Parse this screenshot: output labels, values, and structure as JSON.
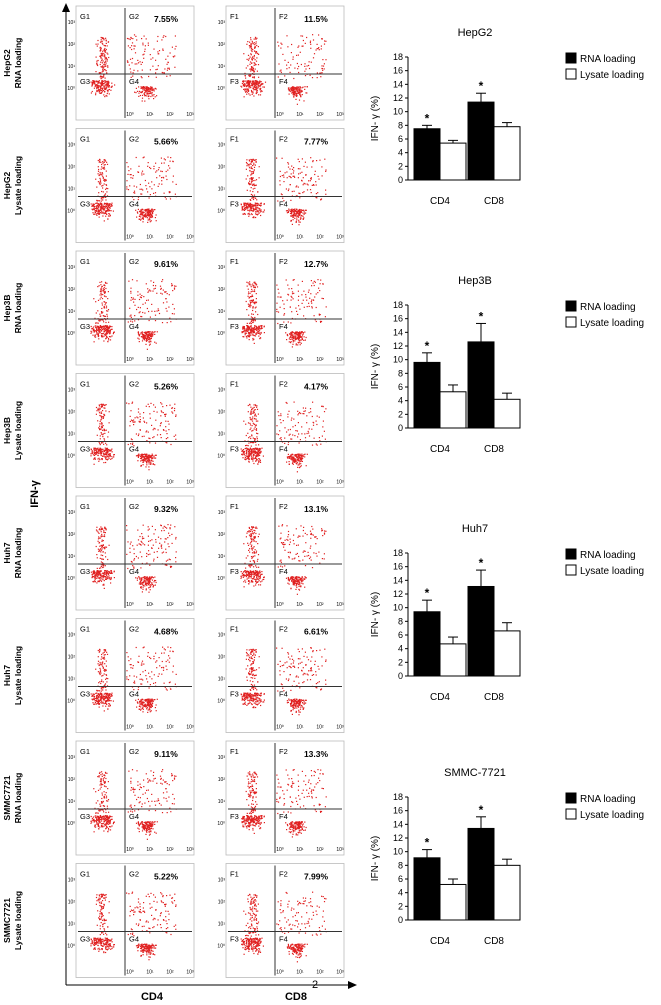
{
  "figure": {
    "y_axis_label": "IFN-γ",
    "x_axis_label_left": "CD4",
    "x_axis_label_right": "CD8",
    "page_number": "2",
    "quadrant_labels_left": [
      "G1",
      "G2",
      "G3",
      "G4"
    ],
    "quadrant_labels_right": [
      "F1",
      "F2",
      "F3",
      "F4"
    ],
    "axis_ticks": [
      "10⁰",
      "10¹",
      "10²",
      "10³"
    ],
    "dot_color": "#e02020"
  },
  "flow_rows": [
    {
      "cell_line": "HepG2",
      "loading": "RNA loading",
      "cd4_pct": "7.55%",
      "cd8_pct": "11.5%"
    },
    {
      "cell_line": "HepG2",
      "loading": "Lysate loading",
      "cd4_pct": "5.66%",
      "cd8_pct": "7.77%"
    },
    {
      "cell_line": "Hep3B",
      "loading": "RNA loading",
      "cd4_pct": "9.61%",
      "cd8_pct": "12.7%"
    },
    {
      "cell_line": "Hep3B",
      "loading": "Lysate loading",
      "cd4_pct": "5.26%",
      "cd8_pct": "4.17%"
    },
    {
      "cell_line": "Huh7",
      "loading": "RNA loading",
      "cd4_pct": "9.32%",
      "cd8_pct": "13.1%"
    },
    {
      "cell_line": "Huh7",
      "loading": "Lysate loading",
      "cd4_pct": "4.68%",
      "cd8_pct": "6.61%"
    },
    {
      "cell_line": "SMMC7721",
      "loading": "RNA loading",
      "cd4_pct": "9.11%",
      "cd8_pct": "13.3%"
    },
    {
      "cell_line": "SMMC7721",
      "loading": "Lysate loading",
      "cd4_pct": "5.22%",
      "cd8_pct": "7.99%"
    }
  ],
  "chart_data": [
    {
      "type": "bar",
      "title": "HepG2",
      "ylabel": "IFN- γ (%)",
      "xlabel": "",
      "categories": [
        "CD4",
        "CD8"
      ],
      "ylim": [
        0,
        18
      ],
      "yticks": [
        0,
        2,
        4,
        6,
        8,
        10,
        12,
        14,
        16,
        18
      ],
      "series": [
        {
          "name": "RNA loading",
          "color": "#000000",
          "values": [
            7.5,
            11.4
          ],
          "errors": [
            0.5,
            1.3
          ]
        },
        {
          "name": "Lysate loading",
          "color": "#ffffff",
          "values": [
            5.4,
            7.8
          ],
          "errors": [
            0.4,
            0.6
          ]
        }
      ],
      "significance": [
        "*",
        "*"
      ]
    },
    {
      "type": "bar",
      "title": "Hep3B",
      "ylabel": "IFN- γ (%)",
      "xlabel": "",
      "categories": [
        "CD4",
        "CD8"
      ],
      "ylim": [
        0,
        18
      ],
      "yticks": [
        0,
        2,
        4,
        6,
        8,
        10,
        12,
        14,
        16,
        18
      ],
      "series": [
        {
          "name": "RNA loading",
          "color": "#000000",
          "values": [
            9.6,
            12.6
          ],
          "errors": [
            1.4,
            2.7
          ]
        },
        {
          "name": "Lysate loading",
          "color": "#ffffff",
          "values": [
            5.3,
            4.2
          ],
          "errors": [
            1.0,
            0.9
          ]
        }
      ],
      "significance": [
        "*",
        "*"
      ]
    },
    {
      "type": "bar",
      "title": "Huh7",
      "ylabel": "IFN- γ (%)",
      "xlabel": "",
      "categories": [
        "CD4",
        "CD8"
      ],
      "ylim": [
        0,
        18
      ],
      "yticks": [
        0,
        2,
        4,
        6,
        8,
        10,
        12,
        14,
        16,
        18
      ],
      "series": [
        {
          "name": "RNA loading",
          "color": "#000000",
          "values": [
            9.4,
            13.1
          ],
          "errors": [
            1.7,
            2.4
          ]
        },
        {
          "name": "Lysate loading",
          "color": "#ffffff",
          "values": [
            4.7,
            6.6
          ],
          "errors": [
            1.0,
            1.2
          ]
        }
      ],
      "significance": [
        "*",
        "*"
      ]
    },
    {
      "type": "bar",
      "title": "SMMC-7721",
      "ylabel": "IFN- γ (%)",
      "xlabel": "",
      "categories": [
        "CD4",
        "CD8"
      ],
      "ylim": [
        0,
        18
      ],
      "yticks": [
        0,
        2,
        4,
        6,
        8,
        10,
        12,
        14,
        16,
        18
      ],
      "series": [
        {
          "name": "RNA loading",
          "color": "#000000",
          "values": [
            9.1,
            13.4
          ],
          "errors": [
            1.2,
            1.7
          ]
        },
        {
          "name": "Lysate loading",
          "color": "#ffffff",
          "values": [
            5.2,
            8.0
          ],
          "errors": [
            0.8,
            0.9
          ]
        }
      ],
      "significance": [
        "*",
        "*"
      ]
    }
  ]
}
